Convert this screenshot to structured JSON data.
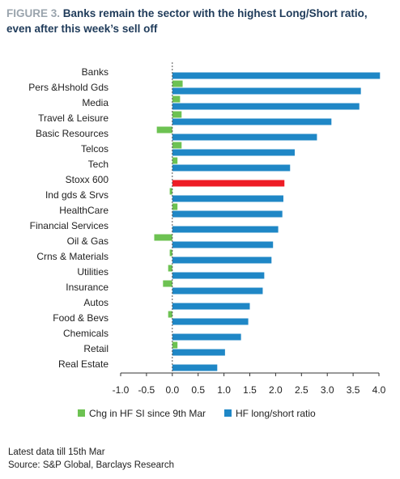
{
  "figure": {
    "label": "FIGURE 3.",
    "title": "Banks remain the sector with the highest Long/Short ratio, even after this week’s sell off"
  },
  "chart_data": {
    "type": "bar",
    "orientation": "horizontal",
    "categories": [
      "Banks",
      "Pers &Hshold Gds",
      "Media",
      "Travel & Leisure",
      "Basic Resources",
      "Telcos",
      "Tech",
      "Stoxx 600",
      "Ind gds & Srvs",
      "HealthCare",
      "Financial Services",
      "Oil & Gas",
      "Crns & Materials",
      "Utilities",
      "Insurance",
      "Autos",
      "Food & Bevs",
      "Chemicals",
      "Retail",
      "Real Estate"
    ],
    "series": [
      {
        "name": "Chg in HF SI since 9th Mar",
        "color": "#6dc252",
        "values": [
          0,
          0.2,
          0.15,
          0.18,
          -0.3,
          0.18,
          0.1,
          0,
          -0.05,
          0.1,
          0,
          -0.35,
          -0.05,
          -0.08,
          -0.18,
          0,
          -0.08,
          0,
          0.1,
          0
        ]
      },
      {
        "name": "HF long/short ratio",
        "color": "#1f87c6",
        "values": [
          4.02,
          3.65,
          3.62,
          3.08,
          2.8,
          2.37,
          2.28,
          2.17,
          2.15,
          2.13,
          2.05,
          1.95,
          1.92,
          1.78,
          1.75,
          1.5,
          1.47,
          1.33,
          1.02,
          0.87
        ]
      }
    ],
    "highlight": {
      "category": "Stoxx 600",
      "color": "#ee1c25"
    },
    "xlim": [
      -1.0,
      4.0
    ],
    "xticks": [
      "-1.0",
      "-0.5",
      "0.0",
      "0.5",
      "1.0",
      "1.5",
      "2.0",
      "2.5",
      "3.0",
      "3.5",
      "4.0"
    ],
    "xlabel": "",
    "ylabel": "",
    "grid": false,
    "legend_position": "bottom"
  },
  "notes": {
    "line1": "Latest data till 15th Mar",
    "line2": "Source: S&P Global, Barclays Research"
  }
}
